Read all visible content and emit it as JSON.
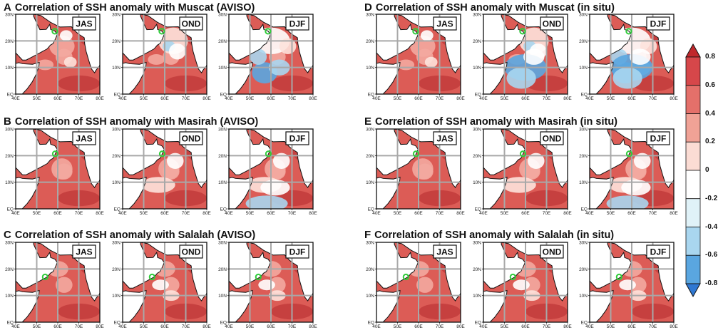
{
  "figure": {
    "rows": [
      {
        "letter": "A",
        "title": "Correlation of SSH anomaly with Muscat (AVISO)",
        "station": "Muscat",
        "source": "AVISO"
      },
      {
        "letter": "B",
        "title": "Correlation of SSH anomaly with Masirah (AVISO)",
        "station": "Masirah",
        "source": "AVISO"
      },
      {
        "letter": "C",
        "title": "Correlation of SSH anomaly with Salalah (AVISO)",
        "station": "Salalah",
        "source": "AVISO"
      },
      {
        "letter": "D",
        "title": "Correlation of SSH anomaly with Muscat (in situ)",
        "station": "Muscat",
        "source": "in situ"
      },
      {
        "letter": "E",
        "title": "Correlation of SSH anomaly with Masirah (in situ)",
        "station": "Masirah",
        "source": "in situ"
      },
      {
        "letter": "F",
        "title": "Correlation of SSH anomaly with Salalah (in situ)",
        "station": "Salalah",
        "source": "in situ"
      }
    ],
    "seasons": [
      "JAS",
      "OND",
      "DJF"
    ],
    "x_ticks": [
      "40E",
      "50E",
      "60E",
      "70E",
      "80E"
    ],
    "y_ticks": [
      "EQ",
      "10N",
      "20N",
      "30N"
    ],
    "stations": {
      "Muscat": {
        "lon": 58.6,
        "lat": 23.6
      },
      "Masirah": {
        "lon": 58.8,
        "lat": 20.7
      },
      "Salalah": {
        "lon": 54.0,
        "lat": 17.0
      }
    },
    "colorbar": {
      "labels": [
        "0.8",
        "0.6",
        "0.4",
        "0.2",
        "0",
        "-0.2",
        "-0.4",
        "-0.6",
        "-0.8"
      ],
      "colors": [
        "#c0282c",
        "#d6474a",
        "#e4706a",
        "#f0a296",
        "#fbdcd4",
        "#ffffff",
        "#e0f2f8",
        "#a9d6ef",
        "#5aa6e0",
        "#2f78d2"
      ]
    },
    "colors": {
      "ocean_positive": "#dc5c56",
      "ocean_strong": "#c94744",
      "land": "#ffffff",
      "grid": "#a8a8a8",
      "station_marker": "#2fcc3a"
    }
  }
}
